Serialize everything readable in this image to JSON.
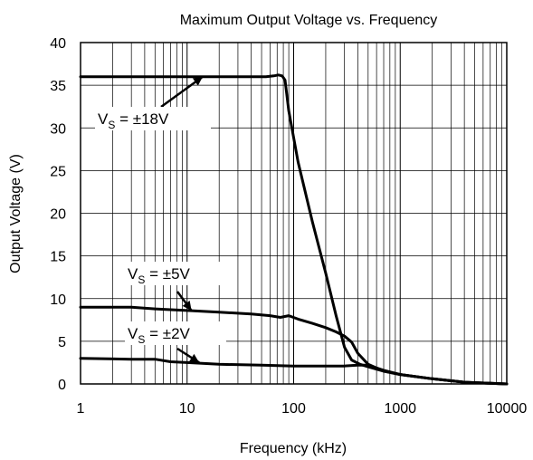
{
  "chart_data": {
    "type": "line",
    "title": "Maximum Output Voltage vs. Frequency",
    "xlabel": "Frequency (kHz)",
    "ylabel": "Output Voltage (V)",
    "xscale": "log",
    "xlim": [
      1,
      10000
    ],
    "ylim": [
      0,
      40
    ],
    "xticks": [
      1,
      10,
      100,
      1000,
      10000
    ],
    "xtick_labels": [
      "1",
      "10",
      "100",
      "1000",
      "10000"
    ],
    "yticks": [
      0,
      5,
      10,
      15,
      20,
      25,
      30,
      35,
      40
    ],
    "ytick_labels": [
      "0",
      "5",
      "10",
      "15",
      "20",
      "25",
      "30",
      "35",
      "40"
    ],
    "grid": true,
    "legend": "none",
    "line_color": "#000000",
    "series": [
      {
        "id": "vs18",
        "x": [
          1,
          10,
          40,
          55,
          65,
          72,
          78,
          83,
          90,
          110,
          150,
          200,
          250,
          300,
          350,
          420,
          500,
          700,
          1000,
          2000,
          4000,
          10000
        ],
        "y": [
          36,
          36,
          36,
          36,
          36.1,
          36.2,
          36.1,
          35.6,
          32,
          26,
          19,
          13,
          8,
          4.3,
          2.8,
          2.3,
          2.0,
          1.5,
          1.1,
          0.6,
          0.2,
          0
        ]
      },
      {
        "id": "vs5",
        "x": [
          1,
          3,
          5,
          7,
          10,
          20,
          40,
          60,
          75,
          90,
          110,
          150,
          200,
          250,
          300,
          350,
          400,
          500,
          700,
          1000,
          2000,
          4000,
          10000
        ],
        "y": [
          9.0,
          9.0,
          8.8,
          8.7,
          8.6,
          8.4,
          8.2,
          8.0,
          7.8,
          8.0,
          7.6,
          7.1,
          6.6,
          6.1,
          5.6,
          4.9,
          3.6,
          2.3,
          1.5,
          1.1,
          0.6,
          0.2,
          0
        ]
      },
      {
        "id": "vs2",
        "x": [
          1,
          3,
          5,
          7,
          10,
          20,
          50,
          100,
          200,
          300,
          400,
          500,
          700,
          1000,
          2000,
          4000,
          10000
        ],
        "y": [
          3.0,
          2.9,
          2.9,
          2.6,
          2.5,
          2.3,
          2.2,
          2.1,
          2.1,
          2.1,
          2.2,
          2.2,
          1.6,
          1.1,
          0.6,
          0.2,
          0
        ]
      }
    ],
    "annotations": [
      {
        "id": "vs18",
        "text_main": "V",
        "text_sub": "S",
        "text_rest": " = ±18V",
        "point": [
          14,
          36
        ]
      },
      {
        "id": "vs5",
        "text_main": "V",
        "text_sub": "S",
        "text_rest": " = ±5V",
        "point": [
          11,
          8.6
        ]
      },
      {
        "id": "vs2",
        "text_main": "V",
        "text_sub": "S",
        "text_rest": " = ±2V",
        "point": [
          13,
          2.5
        ]
      }
    ]
  }
}
